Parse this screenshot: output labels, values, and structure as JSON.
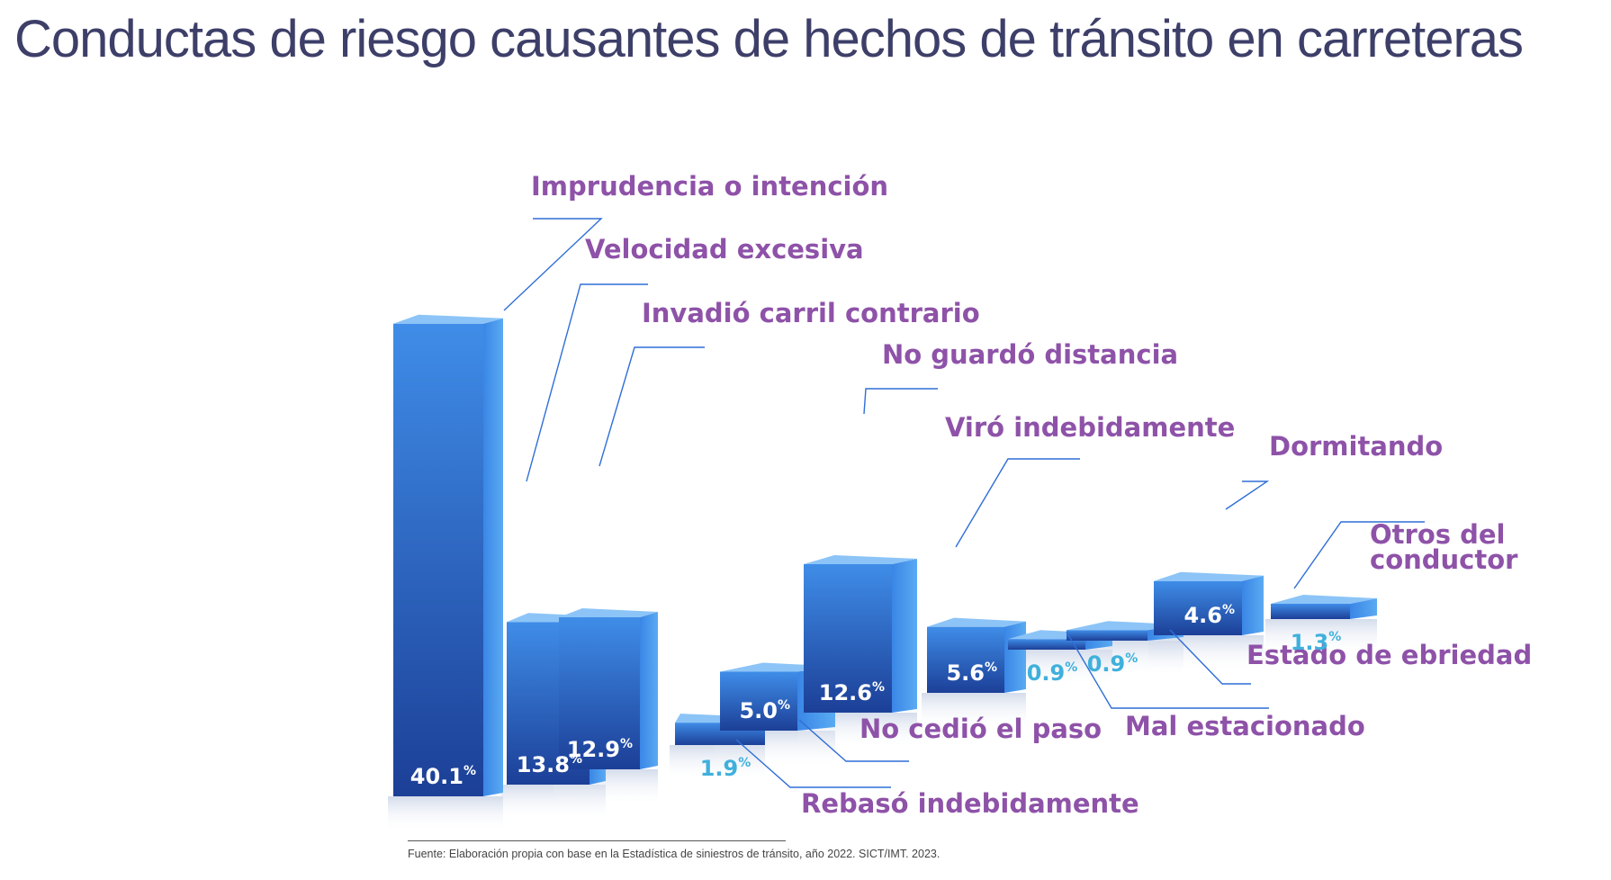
{
  "title": "Conductas de riesgo causantes de hechos de tránsito en carreteras",
  "source": "Fuente: Elaboración propia con base en la Estadística de siniestros de tránsito, año 2022. SICT/IMT. 2023.",
  "colors": {
    "title": "#3d3f69",
    "category_label": "#8e52a8",
    "value_on_bar": "#ffffff",
    "value_outside_bar": "#3fb0dc",
    "leader_line": "#2f6fd6",
    "bar_front_dark": "#1c3f97",
    "bar_front_light": "#3f8de8",
    "bar_side": "#4ea2ee",
    "bar_top": "#8cc4f7"
  },
  "chart_data": {
    "type": "bar",
    "title": "Conductas de riesgo causantes de hechos de tránsito en carreteras",
    "unit": "%",
    "categories": [
      "Imprudencia o intención",
      "Velocidad excesiva",
      "Invadió carril contrario",
      "Rebasó indebidamente",
      "No cedió el paso",
      "No guardó distancia",
      "Viró indebidamente",
      "Estado de ebriedad",
      "Mal estacionado",
      "Dormitando",
      "Otros del conductor"
    ],
    "values": [
      40.1,
      13.8,
      12.9,
      1.9,
      5.0,
      12.6,
      5.6,
      0.9,
      0.9,
      4.6,
      1.3
    ],
    "value_labels": [
      "40.1",
      "13.8",
      "12.9",
      "1.9",
      "5.0",
      "12.6",
      "5.6",
      "0.9",
      "0.9",
      "4.6",
      "1.3"
    ],
    "grid": false,
    "legend": "none"
  }
}
